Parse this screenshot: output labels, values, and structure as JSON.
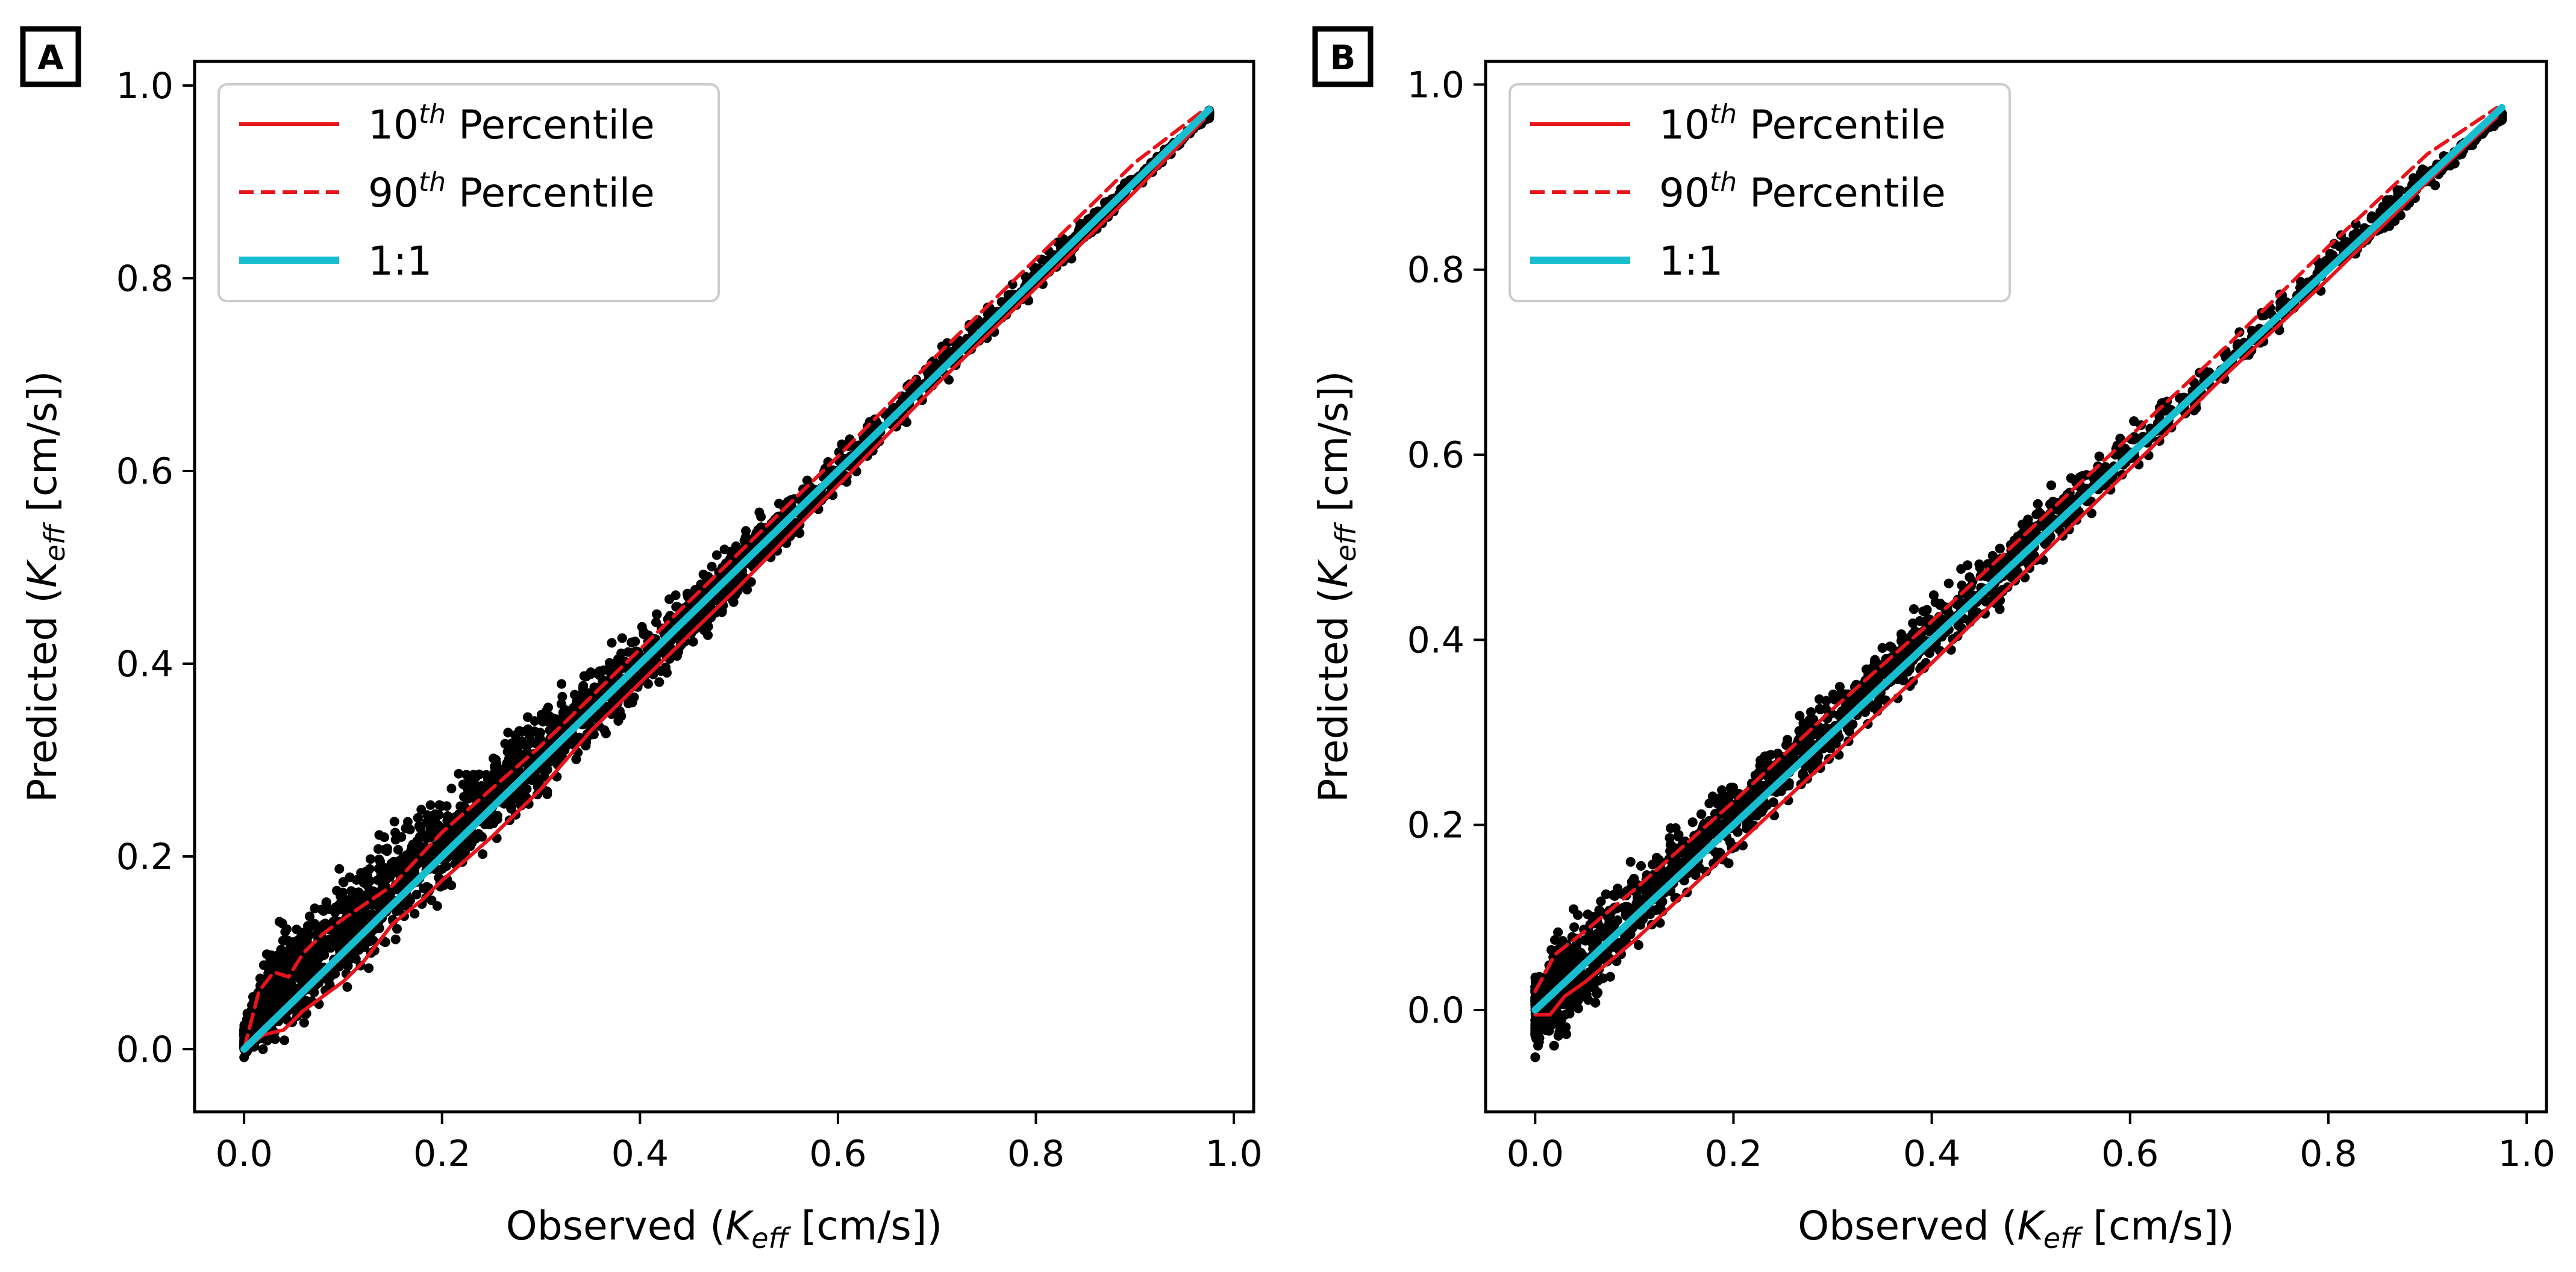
{
  "chart_data": [
    {
      "type": "scatter",
      "panel_label": "A",
      "xlabel": {
        "pre": "Observed (",
        "sym": "K",
        "sub": "eff",
        "post": " [cm/s])"
      },
      "ylabel": {
        "pre": "Predicted (",
        "sym": "K",
        "sub": "eff",
        "post": " [cm/s])"
      },
      "xlim": [
        -0.05,
        1.02
      ],
      "ylim": [
        -0.065,
        1.025
      ],
      "xticks": [
        "0.0",
        "0.2",
        "0.4",
        "0.6",
        "0.8",
        "1.0"
      ],
      "yticks": [
        "0.0",
        "0.2",
        "0.4",
        "0.6",
        "0.8",
        "1.0"
      ],
      "legend": [
        {
          "base": "10",
          "sup": "th",
          "rest": " Percentile",
          "color": "#e8141b",
          "dash": "solid"
        },
        {
          "base": "90",
          "sup": "th",
          "rest": " Percentile",
          "color": "#e8141b",
          "dash": "dashed"
        },
        {
          "base": "1:1",
          "sup": "",
          "rest": "",
          "color": "#17becf",
          "dash": "solid"
        }
      ],
      "scatter_band": [
        [
          0.0,
          -0.01,
          0.03
        ],
        [
          0.03,
          -0.01,
          0.14
        ],
        [
          0.06,
          0.01,
          0.16
        ],
        [
          0.1,
          0.04,
          0.2
        ],
        [
          0.15,
          0.09,
          0.25
        ],
        [
          0.2,
          0.15,
          0.29
        ],
        [
          0.3,
          0.25,
          0.37
        ],
        [
          0.4,
          0.35,
          0.45
        ],
        [
          0.5,
          0.46,
          0.54
        ],
        [
          0.6,
          0.57,
          0.63
        ],
        [
          0.7,
          0.68,
          0.73
        ],
        [
          0.8,
          0.78,
          0.82
        ],
        [
          0.9,
          0.89,
          0.91
        ],
        [
          0.975,
          0.965,
          0.975
        ]
      ],
      "series": [
        {
          "name": "10th Percentile",
          "color": "#e8141b",
          "dash": "solid",
          "x": [
            0.0,
            0.02,
            0.04,
            0.06,
            0.08,
            0.1,
            0.12,
            0.15,
            0.18,
            0.2,
            0.25,
            0.3,
            0.35,
            0.4,
            0.5,
            0.6,
            0.7,
            0.8,
            0.9,
            0.97
          ],
          "y": [
            0.0,
            0.015,
            0.02,
            0.04,
            0.055,
            0.07,
            0.09,
            0.13,
            0.155,
            0.175,
            0.22,
            0.27,
            0.33,
            0.38,
            0.48,
            0.585,
            0.69,
            0.79,
            0.89,
            0.965
          ]
        },
        {
          "name": "90th Percentile",
          "color": "#e8141b",
          "dash": "dashed",
          "x": [
            0.0,
            0.015,
            0.03,
            0.045,
            0.06,
            0.08,
            0.1,
            0.15,
            0.2,
            0.3,
            0.4,
            0.5,
            0.6,
            0.7,
            0.8,
            0.9,
            0.97
          ],
          "y": [
            0.0,
            0.06,
            0.08,
            0.075,
            0.1,
            0.12,
            0.135,
            0.17,
            0.225,
            0.315,
            0.415,
            0.515,
            0.615,
            0.72,
            0.82,
            0.92,
            0.975
          ]
        },
        {
          "name": "1:1",
          "color": "#17becf",
          "dash": "solid",
          "x": [
            0.0,
            0.975
          ],
          "y": [
            0.0,
            0.975
          ]
        }
      ]
    },
    {
      "type": "scatter",
      "panel_label": "B",
      "xlabel": {
        "pre": "Observed (",
        "sym": "K",
        "sub": "eff",
        "post": " [cm/s])"
      },
      "ylabel": {
        "pre": "Predicted (",
        "sym": "K",
        "sub": "eff",
        "post": " [cm/s])"
      },
      "xlim": [
        -0.05,
        1.02
      ],
      "ylim": [
        -0.11,
        1.025
      ],
      "xticks": [
        "0.0",
        "0.2",
        "0.4",
        "0.6",
        "0.8",
        "1.0"
      ],
      "yticks": [
        "0.0",
        "0.2",
        "0.4",
        "0.6",
        "0.8",
        "1.0"
      ],
      "legend": [
        {
          "base": "10",
          "sup": "th",
          "rest": " Percentile",
          "color": "#e8141b",
          "dash": "solid"
        },
        {
          "base": "90",
          "sup": "th",
          "rest": " Percentile",
          "color": "#e8141b",
          "dash": "dashed"
        },
        {
          "base": "1:1",
          "sup": "",
          "rest": "",
          "color": "#17becf",
          "dash": "solid"
        }
      ],
      "scatter_band": [
        [
          0.0,
          -0.055,
          0.05
        ],
        [
          0.03,
          -0.05,
          0.12
        ],
        [
          0.06,
          -0.01,
          0.14
        ],
        [
          0.1,
          0.05,
          0.17
        ],
        [
          0.15,
          0.11,
          0.22
        ],
        [
          0.2,
          0.16,
          0.27
        ],
        [
          0.3,
          0.26,
          0.36
        ],
        [
          0.4,
          0.36,
          0.46
        ],
        [
          0.5,
          0.46,
          0.55
        ],
        [
          0.6,
          0.57,
          0.64
        ],
        [
          0.7,
          0.67,
          0.73
        ],
        [
          0.8,
          0.78,
          0.83
        ],
        [
          0.9,
          0.88,
          0.92
        ],
        [
          0.975,
          0.96,
          0.97
        ]
      ],
      "series": [
        {
          "name": "10th Percentile",
          "color": "#e8141b",
          "dash": "solid",
          "x": [
            0.0,
            0.015,
            0.03,
            0.05,
            0.1,
            0.2,
            0.3,
            0.4,
            0.5,
            0.6,
            0.7,
            0.8,
            0.9,
            0.97
          ],
          "y": [
            -0.005,
            -0.005,
            0.015,
            0.03,
            0.075,
            0.175,
            0.275,
            0.375,
            0.48,
            0.585,
            0.69,
            0.79,
            0.895,
            0.965
          ]
        },
        {
          "name": "90th Percentile",
          "color": "#e8141b",
          "dash": "dashed",
          "x": [
            0.0,
            0.02,
            0.05,
            0.1,
            0.2,
            0.3,
            0.4,
            0.5,
            0.6,
            0.7,
            0.8,
            0.9,
            0.97
          ],
          "y": [
            0.02,
            0.06,
            0.085,
            0.13,
            0.225,
            0.325,
            0.42,
            0.52,
            0.62,
            0.72,
            0.825,
            0.925,
            0.975
          ]
        },
        {
          "name": "1:1",
          "color": "#17becf",
          "dash": "solid",
          "x": [
            0.0,
            0.975
          ],
          "y": [
            0.0,
            0.975
          ]
        }
      ]
    }
  ]
}
